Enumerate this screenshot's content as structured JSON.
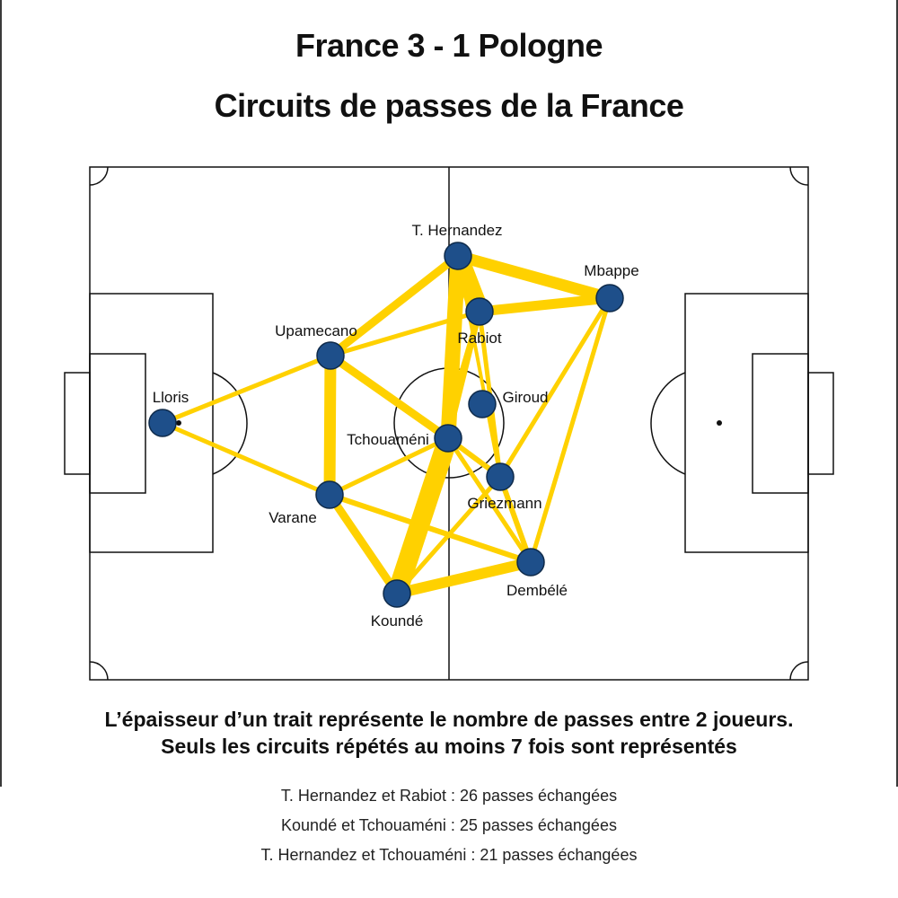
{
  "header": {
    "title": "France 3 - 1 Pologne",
    "subtitle": "Circuits de passes de la France"
  },
  "players": [
    {
      "id": "lloris",
      "name": "Lloris"
    },
    {
      "id": "upamecano",
      "name": "Upamecano"
    },
    {
      "id": "varane",
      "name": "Varane"
    },
    {
      "id": "kounde",
      "name": "Koundé"
    },
    {
      "id": "hernandez",
      "name": "T. Hernandez"
    },
    {
      "id": "rabiot",
      "name": "Rabiot"
    },
    {
      "id": "tchouameni",
      "name": "Tchouaméni"
    },
    {
      "id": "giroud",
      "name": "Giroud"
    },
    {
      "id": "griezmann",
      "name": "Griezmann"
    },
    {
      "id": "dembele",
      "name": "Dembélé"
    },
    {
      "id": "mbappe",
      "name": "Mbappe"
    }
  ],
  "colors": {
    "link": "#FFD100",
    "node_fill": "#1E4F8A",
    "node_stroke": "#0E2A4A",
    "pitch_line": "#111111"
  },
  "notes": {
    "line1": "L’épaisseur d’un trait représente le nombre de passes entre 2 joueurs.",
    "line2": "Seuls les circuits répétés au moins 7 fois sont représentés"
  },
  "facts": [
    "T. Hernandez et Rabiot : 26 passes échangées",
    "Koundé et Tchouaméni : 25 passes échangées",
    "T. Hernandez et Tchouaméni : 21 passes échangées"
  ]
}
